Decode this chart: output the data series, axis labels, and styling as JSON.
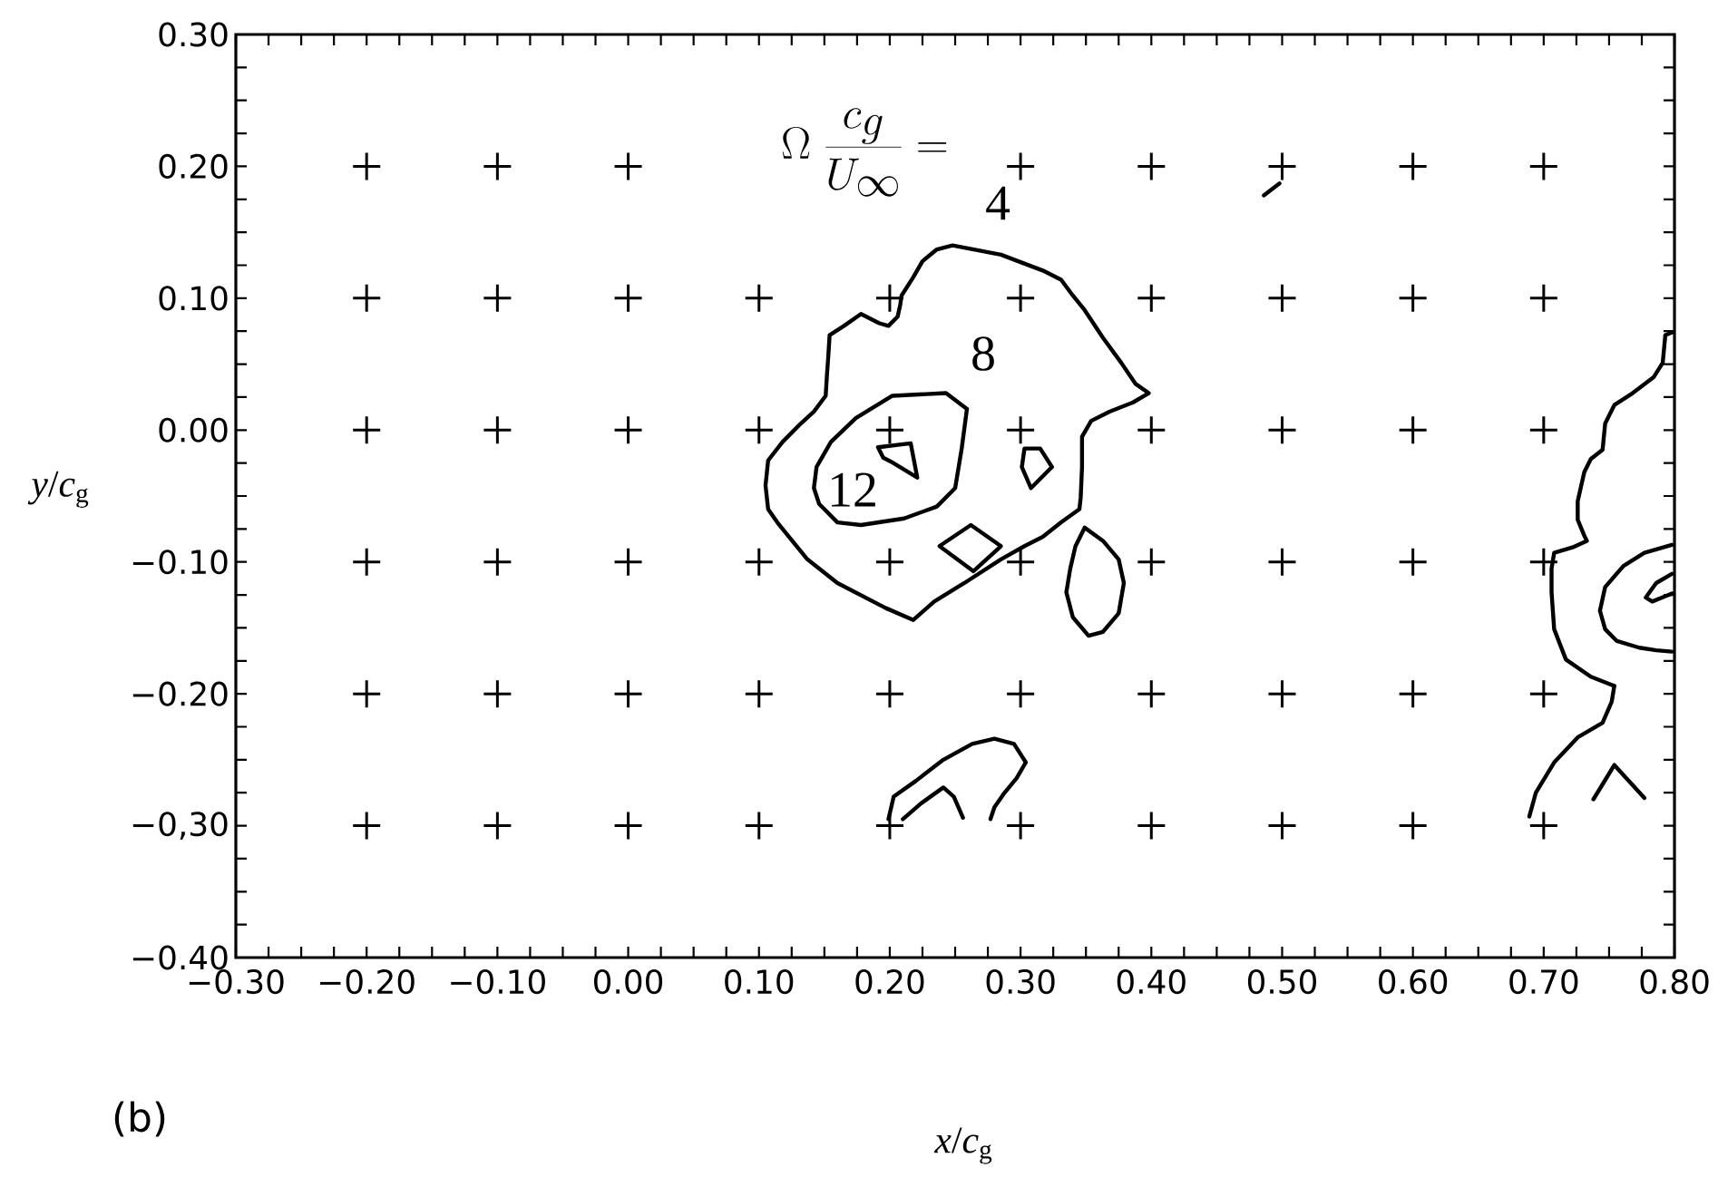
{
  "chart_data": {
    "type": "line",
    "xlabel": "*x*/*c*$_{g}$",
    "ylabel": "*y*/*c*$_{g}$",
    "xlim": [
      -0.3,
      0.8
    ],
    "ylim": [
      -0.4,
      0.3
    ],
    "xticks": [
      {
        "value": -0.3,
        "label": "−0.30"
      },
      {
        "value": -0.275,
        "label": null
      },
      {
        "value": -0.25,
        "label": null
      },
      {
        "value": -0.225,
        "label": null
      },
      {
        "value": -0.2,
        "label": "−0.20"
      },
      {
        "value": -0.175,
        "label": null
      },
      {
        "value": -0.15,
        "label": null
      },
      {
        "value": -0.125,
        "label": null
      },
      {
        "value": -0.1,
        "label": "−0.10"
      },
      {
        "value": -0.075,
        "label": null
      },
      {
        "value": -0.05,
        "label": null
      },
      {
        "value": -0.025,
        "label": null
      },
      {
        "value": 0,
        "label": "0.00"
      },
      {
        "value": 0.025,
        "label": null
      },
      {
        "value": 0.05,
        "label": null
      },
      {
        "value": 0.075,
        "label": null
      },
      {
        "value": 0.1,
        "label": "0.10"
      },
      {
        "value": 0.125,
        "label": null
      },
      {
        "value": 0.15,
        "label": null
      },
      {
        "value": 0.175,
        "label": null
      },
      {
        "value": 0.2,
        "label": "0.20"
      },
      {
        "value": 0.225,
        "label": null
      },
      {
        "value": 0.25,
        "label": null
      },
      {
        "value": 0.275,
        "label": null
      },
      {
        "value": 0.3,
        "label": "0.30"
      },
      {
        "value": 0.325,
        "label": null
      },
      {
        "value": 0.35,
        "label": null
      },
      {
        "value": 0.375,
        "label": null
      },
      {
        "value": 0.4,
        "label": "0.40"
      },
      {
        "value": 0.425,
        "label": null
      },
      {
        "value": 0.45,
        "label": null
      },
      {
        "value": 0.475,
        "label": null
      },
      {
        "value": 0.5,
        "label": "0.50"
      },
      {
        "value": 0.525,
        "label": null
      },
      {
        "value": 0.55,
        "label": null
      },
      {
        "value": 0.575,
        "label": null
      },
      {
        "value": 0.6,
        "label": "0.60"
      },
      {
        "value": 0.625,
        "label": null
      },
      {
        "value": 0.65,
        "label": null
      },
      {
        "value": 0.675,
        "label": null
      },
      {
        "value": 0.7,
        "label": "0.70"
      },
      {
        "value": 0.725,
        "label": null
      },
      {
        "value": 0.75,
        "label": null
      },
      {
        "value": 0.775,
        "label": null
      },
      {
        "value": 0.8,
        "label": "0.80"
      }
    ],
    "yticks": [
      {
        "value": -0.4,
        "label": "−0.40"
      },
      {
        "value": -0.375,
        "label": null
      },
      {
        "value": -0.35,
        "label": null
      },
      {
        "value": -0.325,
        "label": null
      },
      {
        "value": -0.3,
        "label": "−0,30"
      },
      {
        "value": -0.275,
        "label": null
      },
      {
        "value": -0.25,
        "label": null
      },
      {
        "value": -0.225,
        "label": null
      },
      {
        "value": -0.2,
        "label": "−0.20"
      },
      {
        "value": -0.175,
        "label": null
      },
      {
        "value": -0.15,
        "label": null
      },
      {
        "value": -0.125,
        "label": null
      },
      {
        "value": -0.1,
        "label": "−0.10"
      },
      {
        "value": -0.075,
        "label": null
      },
      {
        "value": -0.05,
        "label": null
      },
      {
        "value": -0.025,
        "label": null
      },
      {
        "value": 0,
        "label": "0.00"
      },
      {
        "value": 0.025,
        "label": null
      },
      {
        "value": 0.05,
        "label": null
      },
      {
        "value": 0.075,
        "label": null
      },
      {
        "value": 0.1,
        "label": "0.10"
      },
      {
        "value": 0.125,
        "label": null
      },
      {
        "value": 0.15,
        "label": null
      },
      {
        "value": 0.175,
        "label": null
      },
      {
        "value": 0.2,
        "label": "0.20"
      },
      {
        "value": 0.225,
        "label": null
      },
      {
        "value": 0.25,
        "label": null
      },
      {
        "value": 0.275,
        "label": null
      },
      {
        "value": 0.3,
        "label": "0.30"
      }
    ],
    "series": [
      {
        "type": "scatter",
        "marker": "cross",
        "color": "#000000",
        "x": [
          -0.2,
          -0.1,
          0,
          0.3,
          0.4,
          0.5,
          0.6,
          0.7,
          -0.2,
          -0.1,
          0,
          0.1,
          0.2,
          0.3,
          0.4,
          0.5,
          0.6,
          0.7,
          -0.2,
          -0.1,
          0,
          0.1,
          0.2,
          0.3,
          0.4,
          0.5,
          0.6,
          0.7,
          -0.2,
          -0.1,
          0,
          0.1,
          0.2,
          0.3,
          0.4,
          0.5,
          0.6,
          0.7,
          -0.2,
          -0.1,
          0,
          0.1,
          0.2,
          0.3,
          0.4,
          0.5,
          0.6,
          0.7,
          -0.2,
          -0.1,
          0,
          0.1,
          0.2,
          0.3,
          0.4,
          0.5,
          0.6,
          0.7
        ],
        "values": [
          0.2,
          0.2,
          0.2,
          0.2,
          0.2,
          0.2,
          0.2,
          0.2,
          0.1,
          0.1,
          0.1,
          0.1,
          0.1,
          0.1,
          0.1,
          0.1,
          0.1,
          0.1,
          0,
          0,
          0,
          0,
          0,
          0,
          0,
          0,
          0,
          0,
          -0.1,
          -0.1,
          -0.1,
          -0.1,
          -0.1,
          -0.1,
          -0.1,
          -0.1,
          -0.1,
          -0.1,
          -0.2,
          -0.2,
          -0.2,
          -0.2,
          -0.2,
          -0.2,
          -0.2,
          -0.2,
          -0.2,
          -0.2,
          -0.3,
          -0.3,
          -0.3,
          -0.3,
          -0.3,
          -0.3,
          -0.3,
          -0.3,
          -0.3,
          -0.3
        ]
      },
      {
        "color": "#000000",
        "x": [
          0.105,
          0.107,
          0.118,
          0.132,
          0.142,
          0.151,
          0.152,
          0.153,
          0.154,
          0.165,
          0.178,
          0.192,
          0.199,
          0.206,
          0.208,
          0.209,
          0.218,
          0.225,
          0.236,
          0.248,
          0.285,
          0.317,
          0.331,
          0.34,
          0.349,
          0.363,
          0.377,
          0.388,
          0.398,
          null,
          0.105,
          0.107,
          0.114,
          0.123,
          0.137,
          0.16,
          0.197,
          0.218,
          0.234,
          0.257,
          0.285,
          0.303,
          0.317,
          0.331,
          0.345,
          0.346,
          0.347,
          0.347,
          0.354,
          0.368,
          0.386,
          0.398
        ],
        "values": [
          -0.042,
          -0.023,
          -0.009,
          0.005,
          0.014,
          0.026,
          0.042,
          0.056,
          0.072,
          0.079,
          0.088,
          0.081,
          0.079,
          0.086,
          0.095,
          0.102,
          0.116,
          0.128,
          0.137,
          0.14,
          0.133,
          0.121,
          0.114,
          0.102,
          0.091,
          0.07,
          0.051,
          0.035,
          0.028,
          null,
          -0.042,
          -0.06,
          -0.07,
          -0.081,
          -0.098,
          -0.116,
          -0.135,
          -0.144,
          -0.13,
          -0.116,
          -0.098,
          -0.088,
          -0.081,
          -0.07,
          -0.06,
          -0.051,
          -0.028,
          -0.005,
          0.007,
          0.014,
          0.021,
          0.028
        ]
      },
      {
        "color": "#000000",
        "x": [
          0.142,
          0.144,
          0.155,
          0.174,
          0.202,
          0.243,
          0.259,
          null,
          0.142,
          0.146,
          0.16,
          0.178,
          0.211,
          0.236,
          0.25,
          0.255,
          0.259,
          null,
          0.191,
          0.216,
          0.221,
          null,
          0.191,
          0.195,
          0.201,
          0.221
        ],
        "values": [
          -0.044,
          -0.028,
          -0.009,
          0.009,
          0.026,
          0.028,
          0.016,
          null,
          -0.044,
          -0.056,
          -0.07,
          -0.072,
          -0.067,
          -0.058,
          -0.044,
          -0.014,
          0.016,
          null,
          -0.013,
          -0.01,
          -0.036,
          null,
          -0.013,
          -0.021,
          -0.024,
          -0.036
        ]
      },
      {
        "color": "#000000",
        "x": [
          0.301,
          0.303,
          0.315,
          0.324,
          null,
          0.301,
          0.308,
          0.324
        ],
        "values": [
          -0.028,
          -0.014,
          -0.014,
          -0.028,
          null,
          -0.028,
          -0.044,
          -0.028
        ]
      },
      {
        "color": "#000000",
        "x": [
          0.238,
          0.262,
          0.285,
          null,
          0.238,
          0.264,
          0.285
        ],
        "values": [
          -0.088,
          -0.072,
          -0.088,
          null,
          -0.088,
          -0.107,
          -0.088
        ]
      },
      {
        "color": "#000000",
        "x": [
          0.335,
          0.338,
          0.342,
          0.349,
          0.363,
          0.375,
          0.379,
          null,
          0.335,
          0.34,
          0.352,
          0.363,
          0.375,
          0.379
        ],
        "values": [
          -0.123,
          -0.105,
          -0.088,
          -0.074,
          -0.084,
          -0.098,
          -0.116,
          null,
          -0.123,
          -0.142,
          -0.156,
          -0.153,
          -0.139,
          -0.116
        ]
      },
      {
        "color": "#000000",
        "x": [
          0.199,
          0.203,
          0.22,
          0.241,
          0.263,
          0.28,
          0.295,
          0.304,
          null,
          0.277,
          0.28,
          0.287,
          0.297,
          0.304
        ],
        "values": [
          -0.295,
          -0.278,
          -0.266,
          -0.25,
          -0.238,
          -0.234,
          -0.238,
          -0.252,
          null,
          -0.295,
          -0.286,
          -0.276,
          -0.264,
          -0.252
        ]
      },
      {
        "color": "#000000",
        "x": [
          0.21,
          0.224,
          0.241,
          0.249,
          0.256
        ],
        "values": [
          -0.295,
          -0.283,
          -0.271,
          -0.278,
          -0.294
        ]
      },
      {
        "color": "#000000",
        "x": [
          0.486,
          0.498
        ],
        "values": [
          0.178,
          0.187
        ]
      },
      {
        "color": "#000000",
        "x": [
          0.726,
          0.726,
          0.731,
          0.736,
          0.745,
          0.747,
          0.754,
          0.768,
          0.784,
          0.791,
          0.793,
          0.798,
          null,
          0.726,
          0.731,
          0.733,
          null,
          0.706,
          0.708,
          0.722,
          0.733,
          null,
          0.706,
          0.706,
          0.708,
          0.717,
          0.736,
          0.754,
          null,
          0.689,
          0.694,
          0.708,
          0.726,
          0.745,
          0.752,
          0.754
        ],
        "values": [
          -0.068,
          -0.054,
          -0.032,
          -0.022,
          -0.015,
          0.005,
          0.019,
          0.028,
          0.04,
          0.051,
          0.072,
          0.074,
          null,
          -0.068,
          -0.08,
          -0.084,
          null,
          -0.105,
          -0.093,
          -0.089,
          -0.084,
          null,
          -0.105,
          -0.123,
          -0.151,
          -0.174,
          -0.187,
          -0.194,
          null,
          -0.293,
          -0.275,
          -0.252,
          -0.233,
          -0.222,
          -0.206,
          -0.194
        ]
      },
      {
        "color": "#000000",
        "x": [
          0.743,
          0.747,
          0.761,
          0.777,
          0.798,
          null,
          0.743,
          0.747,
          0.756,
          0.773,
          0.786,
          0.798
        ],
        "values": [
          -0.137,
          -0.119,
          -0.103,
          -0.093,
          -0.087,
          null,
          -0.137,
          -0.151,
          -0.16,
          -0.165,
          -0.167,
          -0.168
        ]
      },
      {
        "color": "#000000",
        "x": [
          0.778,
          0.786,
          0.798,
          null,
          0.778,
          0.783,
          0.793,
          0.798
        ],
        "values": [
          -0.127,
          -0.116,
          -0.109,
          null,
          -0.127,
          -0.13,
          -0.126,
          -0.124
        ]
      },
      {
        "color": "#000000",
        "x": [
          0.738,
          0.754,
          0.777
        ],
        "values": [
          -0.28,
          -0.254,
          -0.279
        ]
      }
    ],
    "annotations": [
      "\\Omega\\;\\frac{c_g}{U_\\infty} =",
      "4",
      "8",
      "12",
      "(b)"
    ]
  }
}
